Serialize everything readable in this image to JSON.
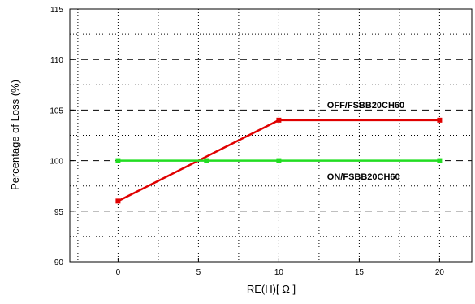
{
  "chart_data": {
    "type": "line",
    "title": "",
    "xlabel": "RE(H)[ Ω ]",
    "ylabel": "Percentage of Loss (%)",
    "xlim": [
      -3,
      22
    ],
    "ylim": [
      90,
      115
    ],
    "x_ticks": [
      0,
      5,
      10,
      15,
      20
    ],
    "y_ticks": [
      90,
      95,
      100,
      105,
      110,
      115
    ],
    "grid": true,
    "series": [
      {
        "name": "OFF/FSBB20CH60",
        "color": "#e00000",
        "x": [
          0,
          10,
          20
        ],
        "y": [
          96,
          104,
          104
        ]
      },
      {
        "name": "ON/FSBB20CH60",
        "color": "#22dd22",
        "x": [
          0,
          5.5,
          10,
          20
        ],
        "y": [
          100,
          100,
          100,
          100
        ]
      }
    ],
    "annotations": [
      {
        "text": "OFF/FSBB20CH60",
        "x": 13,
        "y": 105.2
      },
      {
        "text": "ON/FSBB20CH60",
        "x": 13,
        "y": 98.1
      }
    ]
  }
}
